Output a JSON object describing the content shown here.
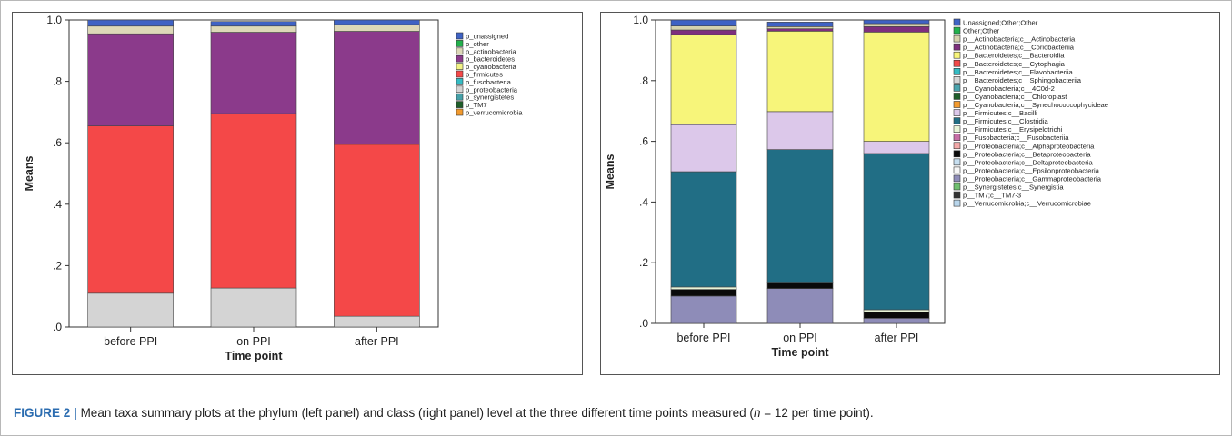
{
  "caption": {
    "label": "FIGURE 2 |",
    "text_before_n": "Mean taxa summary plots at the phylum (left panel) and class (right panel) level at the three different time points measured (",
    "n_symbol": "n",
    "text_after_n": " = 12 per time point)."
  },
  "chart_data": [
    {
      "type": "bar",
      "stacked": true,
      "panel": "left",
      "title": "",
      "xlabel": "Time point",
      "ylabel": "Means",
      "ylim": [
        0,
        1.0
      ],
      "yticks": [
        0,
        0.2,
        0.4,
        0.6,
        0.8,
        1.0
      ],
      "ytick_labels": [
        ".0",
        ".2",
        ".4",
        ".6",
        ".8",
        "1.0"
      ],
      "categories": [
        "before PPI",
        "on PPI",
        "after PPI"
      ],
      "legend_position": "right",
      "series": [
        {
          "name": "p_unassigned",
          "color": "#3f62c4",
          "values": [
            0.02,
            0.015,
            0.015
          ]
        },
        {
          "name": "p_other",
          "color": "#22b14c",
          "values": [
            0.0,
            0.0,
            0.0
          ]
        },
        {
          "name": "p_actinobacteria",
          "color": "#ddd8b8",
          "values": [
            0.025,
            0.02,
            0.022
          ]
        },
        {
          "name": "p_bacteroidetes",
          "color": "#8b3a8b",
          "values": [
            0.3,
            0.265,
            0.368
          ]
        },
        {
          "name": "p_cyanobacteria",
          "color": "#f2f285",
          "values": [
            0.0,
            0.0,
            0.0
          ]
        },
        {
          "name": "p_firmicutes",
          "color": "#f44848",
          "values": [
            0.545,
            0.568,
            0.56
          ]
        },
        {
          "name": "p_fusobacteria",
          "color": "#35bcc4",
          "values": [
            0.0,
            0.0,
            0.0
          ]
        },
        {
          "name": "p_proteobacteria",
          "color": "#d4d4d4",
          "values": [
            0.11,
            0.127,
            0.035
          ]
        },
        {
          "name": "p_synergistetes",
          "color": "#46a0a8",
          "values": [
            0.0,
            0.0,
            0.0
          ]
        },
        {
          "name": "p_TM7",
          "color": "#1f5e2a",
          "values": [
            0.0,
            0.0,
            0.0
          ]
        },
        {
          "name": "p_verrucomicrobia",
          "color": "#f29a2e",
          "values": [
            0.0,
            0.0,
            0.0
          ]
        }
      ]
    },
    {
      "type": "bar",
      "stacked": true,
      "panel": "right",
      "title": "",
      "xlabel": "Time point",
      "ylabel": "Means",
      "ylim": [
        0,
        1.0
      ],
      "yticks": [
        0,
        0.2,
        0.4,
        0.6,
        0.8,
        1.0
      ],
      "ytick_labels": [
        ".0",
        ".2",
        ".4",
        ".6",
        ".8",
        "1.0"
      ],
      "categories": [
        "before PPI",
        "on PPI",
        "after PPI"
      ],
      "legend_position": "right",
      "series": [
        {
          "name": "Unassigned;Other;Other",
          "color": "#3f62c4",
          "values": [
            0.02,
            0.015,
            0.012
          ]
        },
        {
          "name": "Other;Other",
          "color": "#22b14c",
          "values": [
            0.0,
            0.0,
            0.0
          ]
        },
        {
          "name": "p__Actinobacteria;c__Actinobacteria",
          "color": "#d6d2ae",
          "values": [
            0.013,
            0.007,
            0.01
          ]
        },
        {
          "name": "p__Actinobacteria;c__Coriobacteriia",
          "color": "#7e2f7e",
          "values": [
            0.015,
            0.008,
            0.018
          ]
        },
        {
          "name": "p__Bacteroidetes;c__Bacteroidia",
          "color": "#f7f57a",
          "values": [
            0.297,
            0.265,
            0.36
          ]
        },
        {
          "name": "p__Bacteroidetes;c__Cytophagia",
          "color": "#f04a4a",
          "values": [
            0.0,
            0.0,
            0.0
          ]
        },
        {
          "name": "p__Bacteroidetes;c__Flavobacteriia",
          "color": "#35bcc4",
          "values": [
            0.0,
            0.0,
            0.0
          ]
        },
        {
          "name": "p__Bacteroidetes;c__Sphingobacteriia",
          "color": "#d6d6d6",
          "values": [
            0.0,
            0.0,
            0.0
          ]
        },
        {
          "name": "p__Cyanobacteria;c__4C0d-2",
          "color": "#4aa3ac",
          "values": [
            0.0,
            0.0,
            0.0
          ]
        },
        {
          "name": "p__Cyanobacteria;c__Chloroplast",
          "color": "#1f5e2a",
          "values": [
            0.0,
            0.0,
            0.0
          ]
        },
        {
          "name": "p__Cyanobacteria;c__Synechococcophycideae",
          "color": "#f29a2e",
          "values": [
            0.0,
            0.0,
            0.0
          ]
        },
        {
          "name": "p__Firmicutes;c__Bacilli",
          "color": "#dcc8ea",
          "values": [
            0.155,
            0.125,
            0.04
          ]
        },
        {
          "name": "p__Firmicutes;c__Clostridia",
          "color": "#216e85",
          "values": [
            0.38,
            0.44,
            0.515
          ]
        },
        {
          "name": "p__Firmicutes;c__Erysipelotrichi",
          "color": "#e8f4d8",
          "values": [
            0.008,
            0.0,
            0.008
          ]
        },
        {
          "name": "p__Fusobacteria;c__Fusobacteriia",
          "color": "#c66ea6",
          "values": [
            0.0,
            0.0,
            0.0
          ]
        },
        {
          "name": "p__Proteobacteria;c__Alphaproteobacteria",
          "color": "#f2a8a8",
          "values": [
            0.0,
            0.0,
            0.0
          ]
        },
        {
          "name": "p__Proteobacteria;c__Betaproteobacteria",
          "color": "#0a0a0a",
          "values": [
            0.022,
            0.018,
            0.02
          ]
        },
        {
          "name": "p__Proteobacteria;c__Deltaproteobacteria",
          "color": "#c7dff0",
          "values": [
            0.0,
            0.0,
            0.0
          ]
        },
        {
          "name": "p__Proteobacteria;c__Epsilonproteobacteria",
          "color": "#f7f7f7",
          "values": [
            0.0,
            0.0,
            0.0
          ]
        },
        {
          "name": "p__Proteobacteria;c__Gammaproteobacteria",
          "color": "#8e8cb8",
          "values": [
            0.09,
            0.115,
            0.017
          ]
        },
        {
          "name": "p__Synergistetes;c__Synergistia",
          "color": "#6fbf6f",
          "values": [
            0.0,
            0.0,
            0.0
          ]
        },
        {
          "name": "p__TM7;c__TM7-3",
          "color": "#333333",
          "values": [
            0.0,
            0.0,
            0.0
          ]
        },
        {
          "name": "p__Verrucomicrobia;c__Verrucomicrobiae",
          "color": "#b9d6ec",
          "values": [
            0.0,
            0.0,
            0.0
          ]
        }
      ]
    }
  ]
}
